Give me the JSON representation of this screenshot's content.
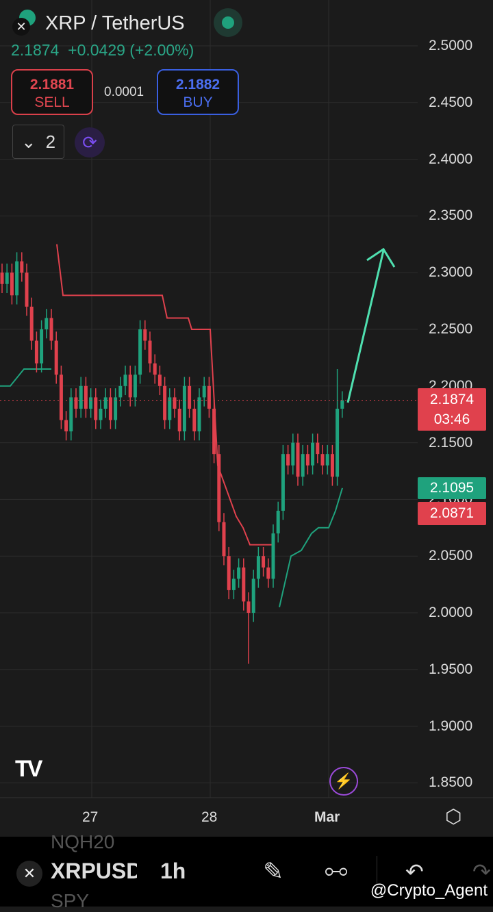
{
  "header": {
    "title": "XRP / TetherUS",
    "last_price": "2.1874",
    "change": "+0.0429 (+2.00%)"
  },
  "trade": {
    "sell_price": "2.1881",
    "sell_label": "SELL",
    "spread": "0.0001",
    "buy_price": "2.1882",
    "buy_label": "BUY"
  },
  "layouts": {
    "count": "2"
  },
  "price_axis": {
    "ticks": [
      "2.5000",
      "2.4500",
      "2.4000",
      "2.3500",
      "2.3000",
      "2.2500",
      "2.2000",
      "2.1500",
      "2.1000",
      "2.0500",
      "2.0000",
      "1.9500",
      "1.9000",
      "1.8500"
    ]
  },
  "time_axis": {
    "ticks": [
      "27",
      "28",
      "Mar"
    ]
  },
  "tags": {
    "current_price": "2.1874",
    "countdown": "03:46",
    "supertrend_up": "2.1095",
    "supertrend_down": "2.0871"
  },
  "colors": {
    "up": "#1fa27d",
    "down": "#e0414d",
    "accent": "#1fa27d",
    "arrow": "#4fe0b0"
  },
  "chart_data": {
    "type": "candlestick",
    "closes": [
      2.29,
      2.3,
      2.28,
      2.31,
      2.3,
      2.27,
      2.24,
      2.22,
      2.25,
      2.26,
      2.24,
      2.21,
      2.17,
      2.16,
      2.19,
      2.18,
      2.2,
      2.18,
      2.19,
      2.17,
      2.18,
      2.19,
      2.17,
      2.19,
      2.2,
      2.21,
      2.19,
      2.21,
      2.25,
      2.24,
      2.22,
      2.21,
      2.2,
      2.17,
      2.19,
      2.18,
      2.16,
      2.2,
      2.18,
      2.16,
      2.19,
      2.2,
      2.18,
      2.14,
      2.08,
      2.05,
      2.02,
      2.03,
      2.04,
      2.01,
      2.0,
      2.03,
      2.05,
      2.04,
      2.03,
      2.07,
      2.09,
      2.14,
      2.13,
      2.15,
      2.12,
      2.14,
      2.13,
      2.15,
      2.14,
      2.13,
      2.14,
      2.12,
      2.18,
      2.1874
    ],
    "lowest_low": 1.955,
    "highest_recent_high": 2.215,
    "supertrend_down": [
      2.325,
      2.28,
      2.28,
      2.28,
      2.26,
      2.26,
      2.25,
      2.25,
      2.13,
      2.11,
      2.085,
      2.075,
      2.06,
      2.06
    ],
    "supertrend_up_early": [
      2.2,
      2.2,
      2.215,
      2.215
    ],
    "supertrend_up_late": [
      2.005,
      2.05,
      2.055,
      2.07,
      2.075,
      2.075,
      2.09,
      2.11
    ]
  },
  "bottom_bar": {
    "symbol": "XRPUSDT",
    "symbol_above": "NQH20",
    "symbol_below": "SPY",
    "interval": "1h",
    "watermark": "@Crypto_Agent"
  }
}
